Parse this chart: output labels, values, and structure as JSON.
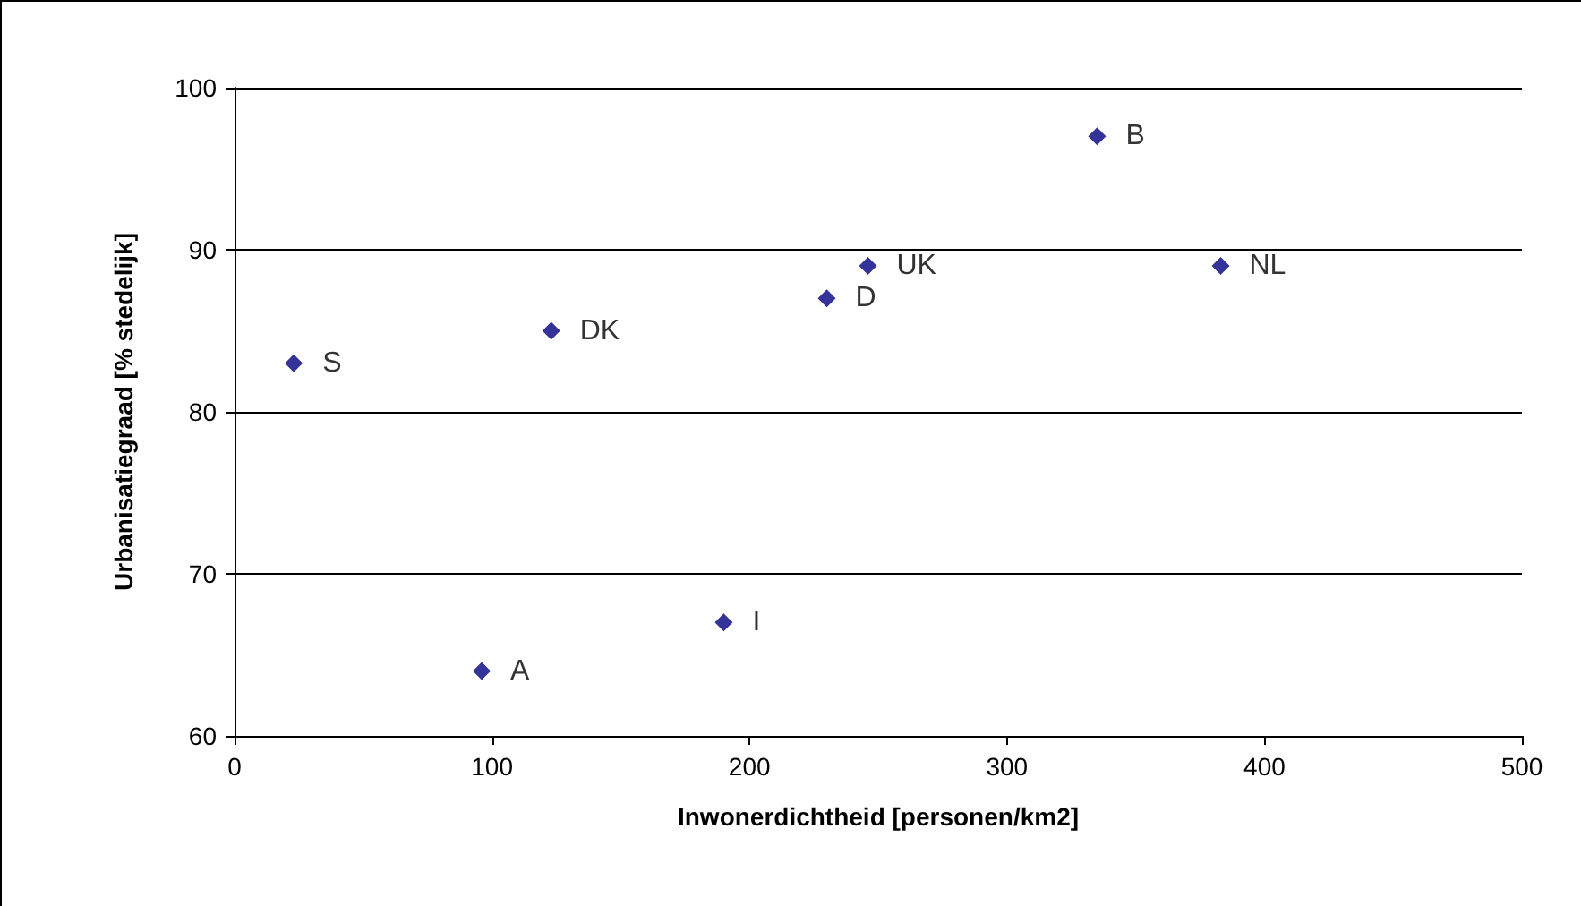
{
  "chart_data": {
    "type": "scatter",
    "xlabel": "Inwonerdichtheid [personen/km2]",
    "ylabel": "Urbanisatiegraad [% stedelijk]",
    "x": [
      23,
      96,
      123,
      190,
      230,
      246,
      335,
      383
    ],
    "series": [
      {
        "color": "#000080",
        "values": [
          83,
          64,
          85,
          67,
          87,
          89,
          97,
          89
        ]
      }
    ],
    "annotations": [
      {
        "text": "S",
        "x": 23,
        "y": 83
      },
      {
        "text": "A",
        "x": 96,
        "y": 64
      },
      {
        "text": "DK",
        "x": 123,
        "y": 85
      },
      {
        "text": "I",
        "x": 190,
        "y": 67
      },
      {
        "text": "D",
        "x": 230,
        "y": 87
      },
      {
        "text": "UK",
        "x": 246,
        "y": 89
      },
      {
        "text": "B",
        "x": 335,
        "y": 97
      },
      {
        "text": "NL",
        "x": 383,
        "y": 89
      }
    ],
    "xlim": [
      0,
      500
    ],
    "xticks": [
      0,
      100,
      200,
      300,
      400,
      500
    ],
    "ylim": [
      60,
      100
    ],
    "yticks": [
      60,
      70,
      80,
      90,
      100
    ],
    "grid": "y",
    "marker": "diamond"
  }
}
